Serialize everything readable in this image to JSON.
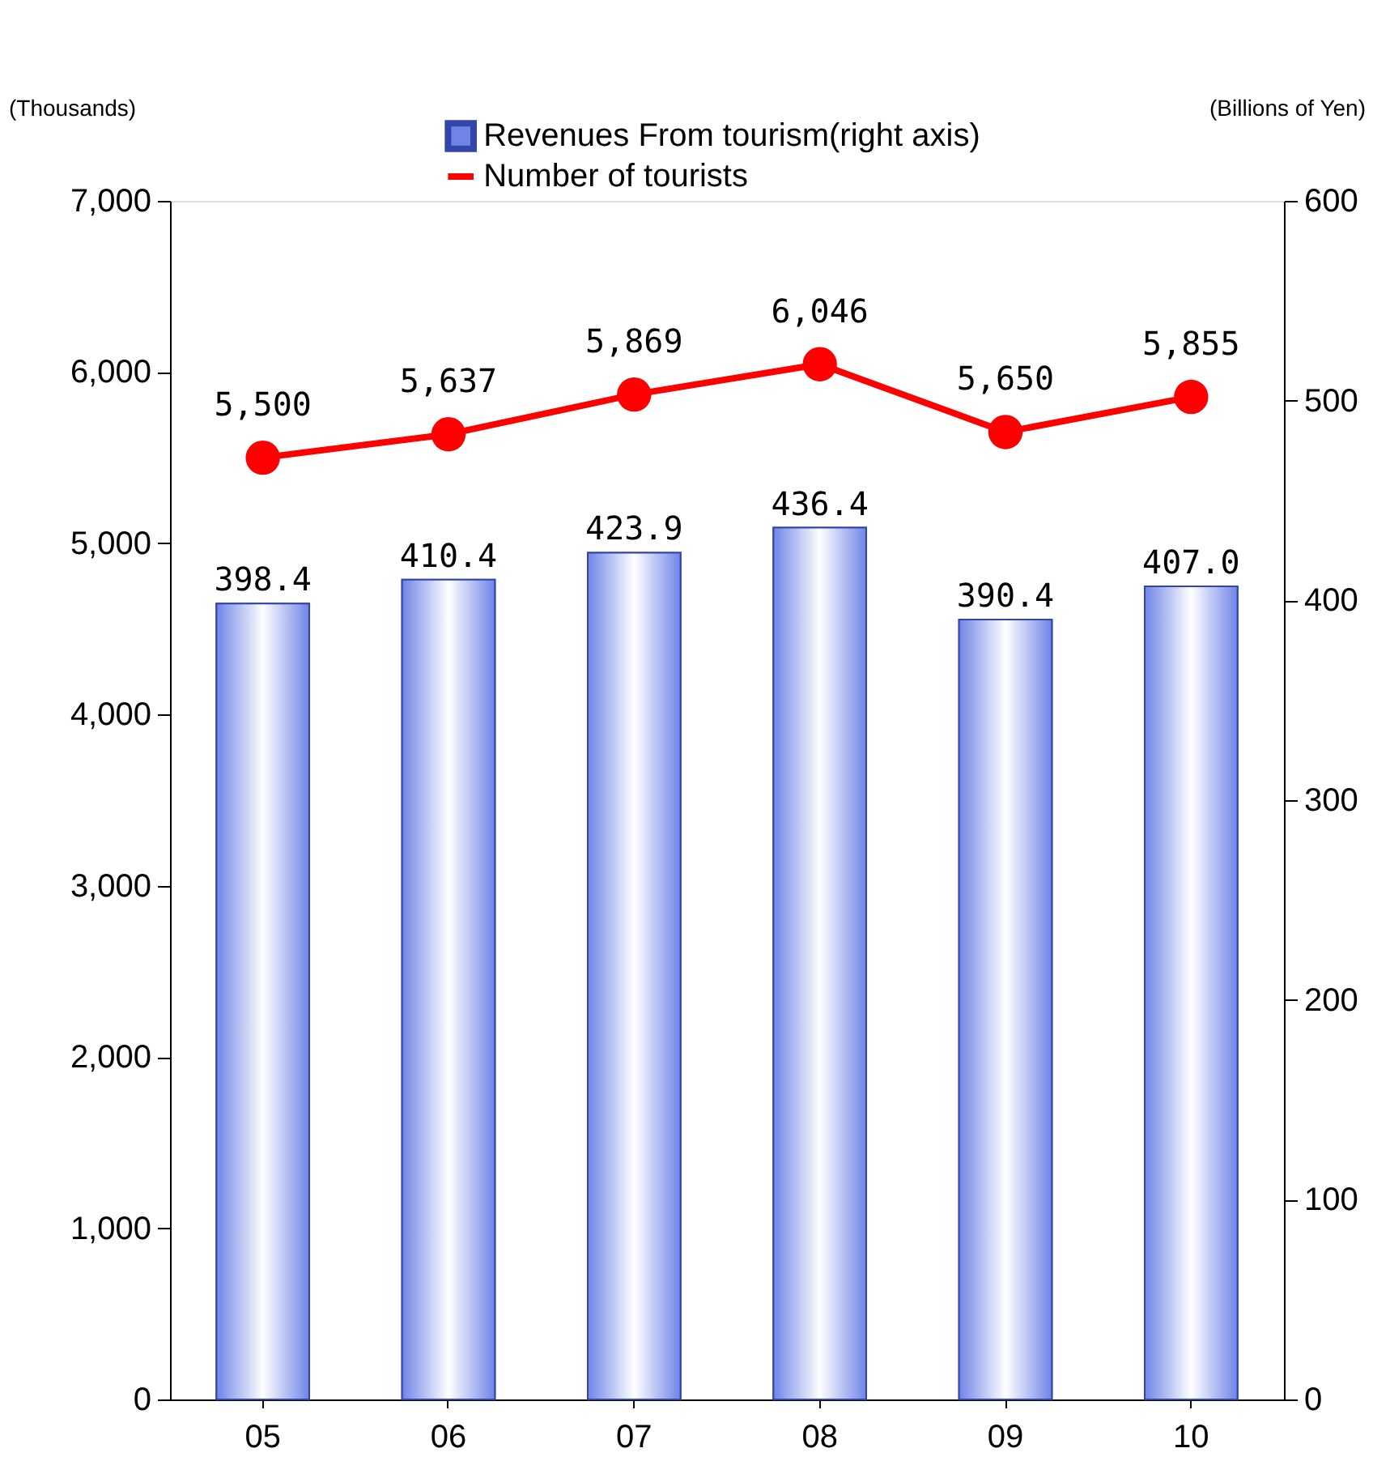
{
  "chart_data": {
    "type": "bar",
    "categories": [
      "05",
      "06",
      "07",
      "08",
      "09",
      "10"
    ],
    "ylabel": "(Thousands)",
    "y2label": "(Billions of Yen)",
    "ylim": [
      0,
      7000
    ],
    "yticks": [
      0,
      {
        "value": 1000,
        "label": "1,000"
      },
      {
        "value": 2000,
        "label": "2,000"
      },
      {
        "value": 3000,
        "label": "3,000"
      },
      {
        "value": 4000,
        "label": "4,000"
      },
      {
        "value": 5000,
        "label": "5,000"
      },
      {
        "value": 6000,
        "label": "6,000"
      },
      {
        "value": 7000,
        "label": "7,000"
      }
    ],
    "y2lim": [
      0,
      600
    ],
    "y2ticks": [
      0,
      100,
      200,
      300,
      400,
      500,
      600
    ],
    "series": [
      {
        "name": "Revenues From tourism(right axis)",
        "axis": "y2",
        "color": "#6f84e6",
        "values": [
          398.4,
          410.4,
          423.9,
          436.4,
          390.4,
          407.0
        ],
        "value_labels": [
          "398.4",
          "410.4",
          "423.9",
          "436.4",
          "390.4",
          "407.0"
        ]
      },
      {
        "name": "Number of tourists",
        "type": "line",
        "color": "#ff0000",
        "values": [
          5500,
          5637,
          5869,
          6046,
          5650,
          5855
        ],
        "value_labels": [
          "5,500",
          "5,637",
          "5,869",
          "6,046",
          "5,650",
          "5,855"
        ]
      }
    ],
    "marker": "circle",
    "grid": false,
    "legend": "top"
  }
}
